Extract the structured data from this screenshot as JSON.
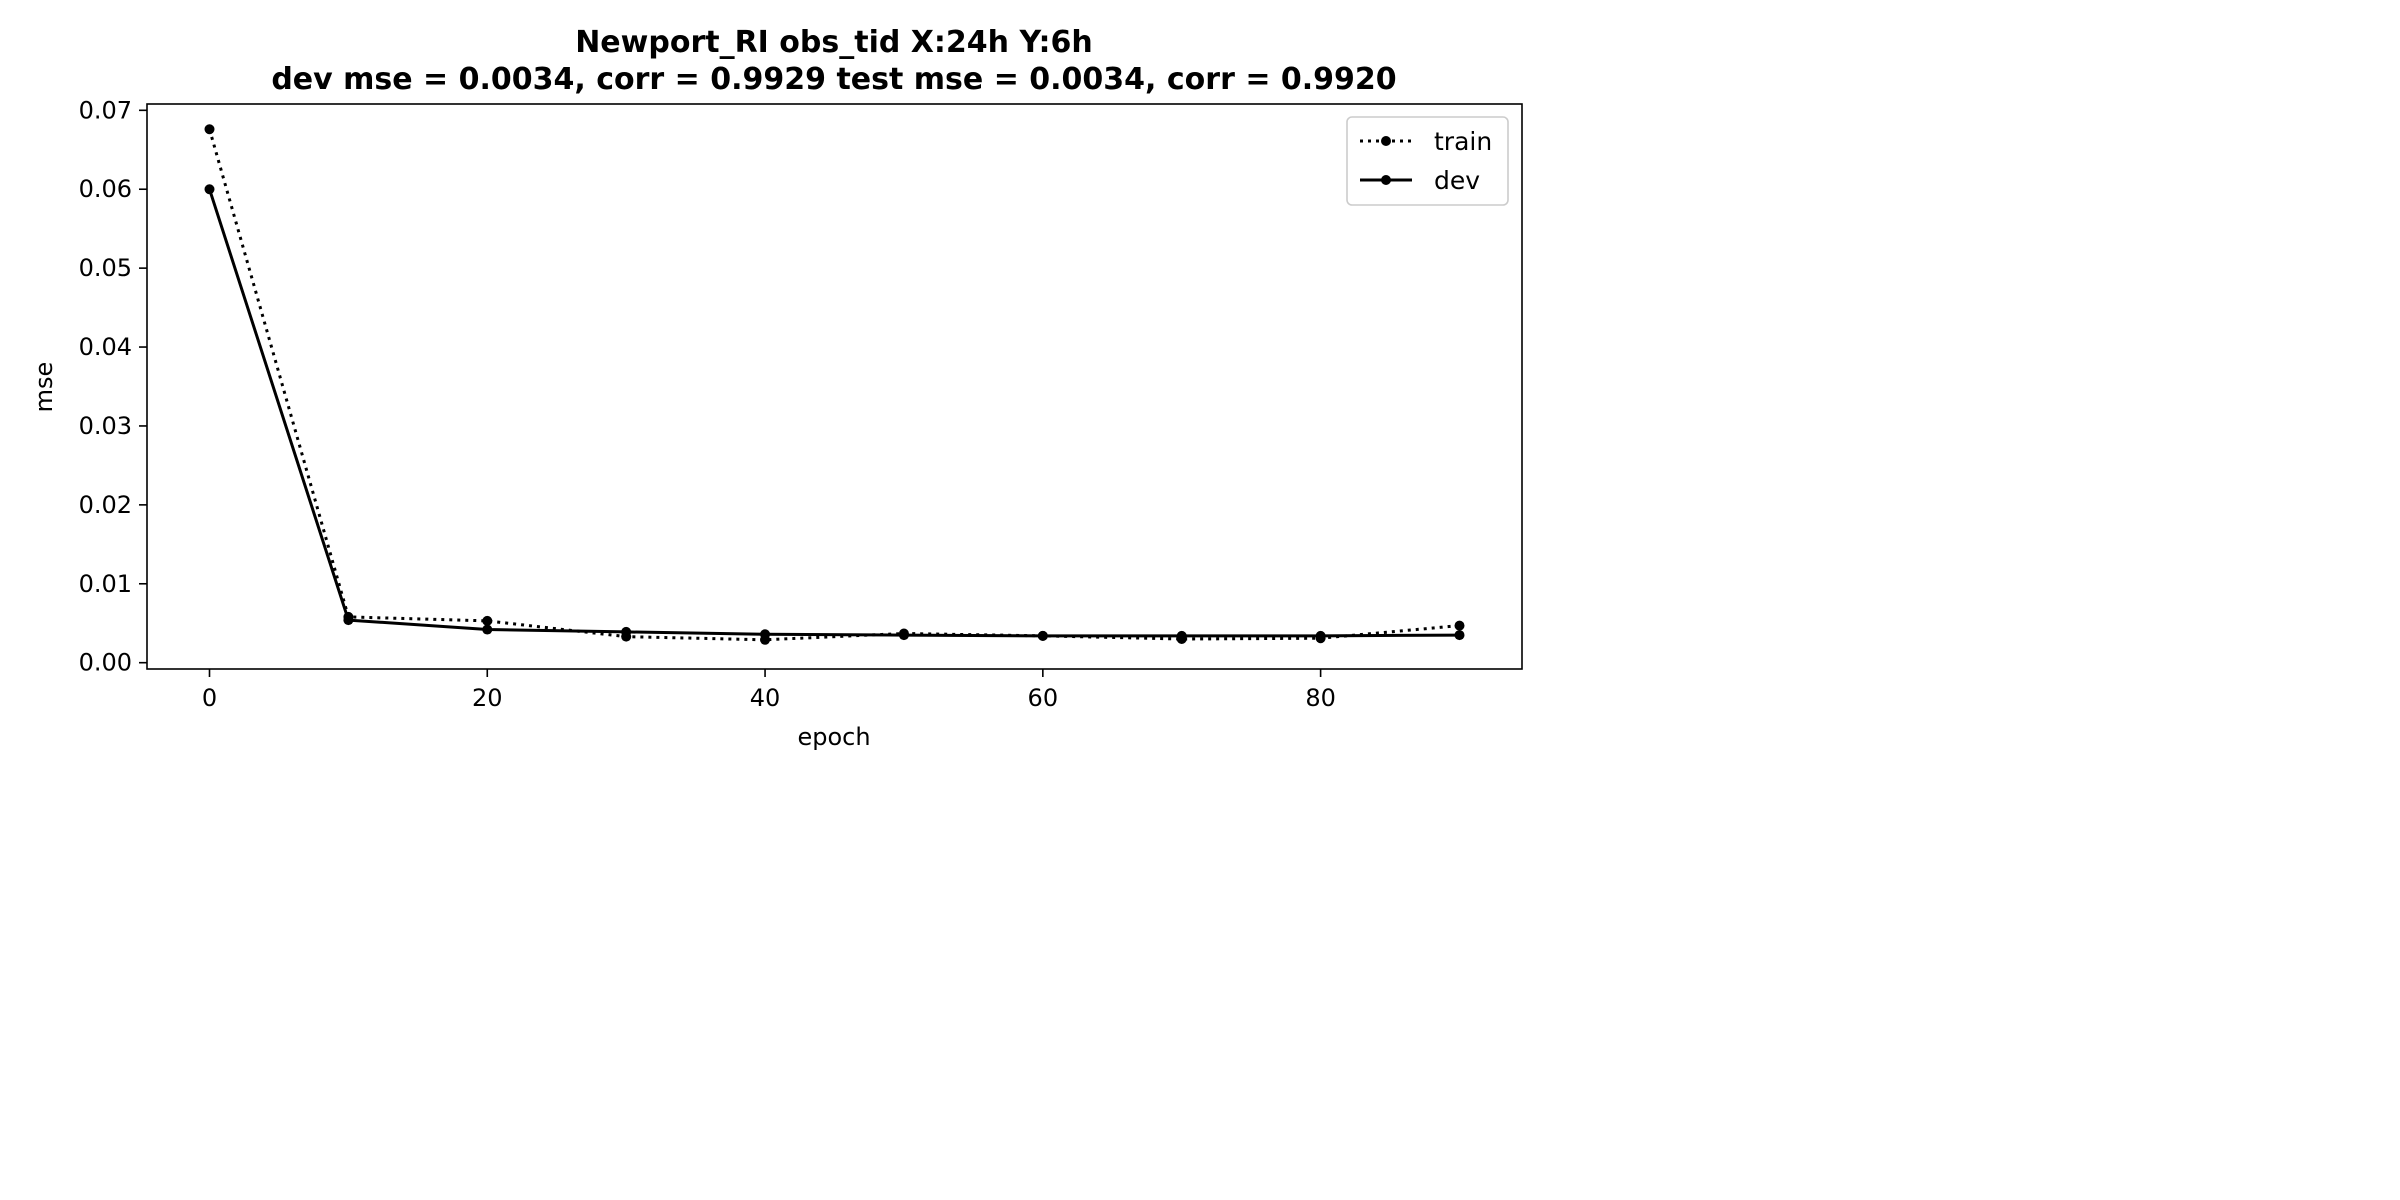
{
  "chart_data": {
    "type": "line",
    "title_lines": [
      "Newport_RI   obs_tid   X:24h   Y:6h",
      "dev mse = 0.0034, corr = 0.9929   test mse = 0.0034, corr = 0.9920"
    ],
    "xlabel": "epoch",
    "ylabel": "mse",
    "xlim": [
      -4.5,
      94.5
    ],
    "ylim": [
      -0.0008,
      0.0708
    ],
    "x_ticks": [
      0,
      20,
      40,
      60,
      80
    ],
    "x_tick_labels": [
      "0",
      "20",
      "40",
      "60",
      "80"
    ],
    "y_ticks": [
      0.0,
      0.01,
      0.02,
      0.03,
      0.04,
      0.05,
      0.06,
      0.07
    ],
    "y_tick_labels": [
      "0.00",
      "0.01",
      "0.02",
      "0.03",
      "0.04",
      "0.05",
      "0.06",
      "0.07"
    ],
    "grid": false,
    "legend_position": "top-right",
    "x": [
      0,
      10,
      20,
      30,
      40,
      50,
      60,
      70,
      80,
      90
    ],
    "series": [
      {
        "name": "train",
        "line_style": "dotted",
        "color": "#000000",
        "values": [
          0.0676,
          0.0058,
          0.0053,
          0.0033,
          0.0029,
          0.0037,
          0.0034,
          0.003,
          0.0031,
          0.0047
        ]
      },
      {
        "name": "dev",
        "line_style": "solid",
        "color": "#000000",
        "values": [
          0.06,
          0.0054,
          0.0042,
          0.0039,
          0.0036,
          0.0035,
          0.0034,
          0.0034,
          0.0034,
          0.0035
        ]
      }
    ]
  }
}
